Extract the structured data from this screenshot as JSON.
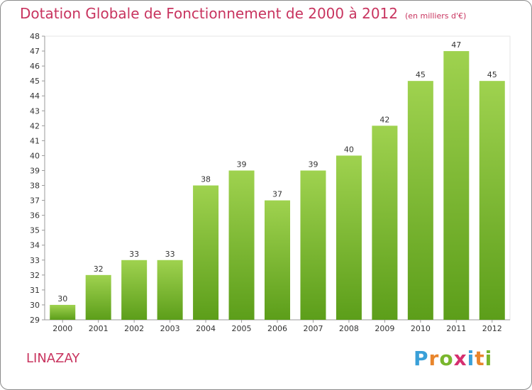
{
  "header": {
    "title": "Dotation Globale de Fonctionnement de 2000 à 2012",
    "subtitle": "(en milliers d'€)"
  },
  "footer": {
    "commune": "LINAZAY",
    "logo": {
      "letters": [
        "P",
        "r",
        "o",
        "x",
        "i",
        "t",
        "i"
      ]
    }
  },
  "colors": {
    "title": "#c8345f",
    "bar_top": "#9fd24f",
    "bar_bottom": "#5c9e1a",
    "logo_letters": [
      "#3aa0d8",
      "#e8852c",
      "#79b62d",
      "#d62f6f",
      "#3aa0d8",
      "#e8852c",
      "#79b62d"
    ]
  },
  "chart_data": {
    "type": "bar",
    "title": "Dotation Globale de Fonctionnement de 2000 à 2012",
    "subtitle": "(en milliers d'€)",
    "xlabel": "",
    "ylabel": "",
    "categories": [
      "2000",
      "2001",
      "2002",
      "2003",
      "2004",
      "2005",
      "2006",
      "2007",
      "2008",
      "2009",
      "2010",
      "2011",
      "2012"
    ],
    "values": [
      30,
      32,
      33,
      33,
      38,
      39,
      37,
      39,
      40,
      42,
      45,
      47,
      45
    ],
    "ylim": [
      29,
      48
    ],
    "yticks": [
      "29",
      "30",
      "31",
      "32",
      "33",
      "34",
      "35",
      "36",
      "37",
      "38",
      "39",
      "40",
      "41",
      "42",
      "43",
      "44",
      "45",
      "46",
      "47",
      "48"
    ],
    "grid": false
  }
}
